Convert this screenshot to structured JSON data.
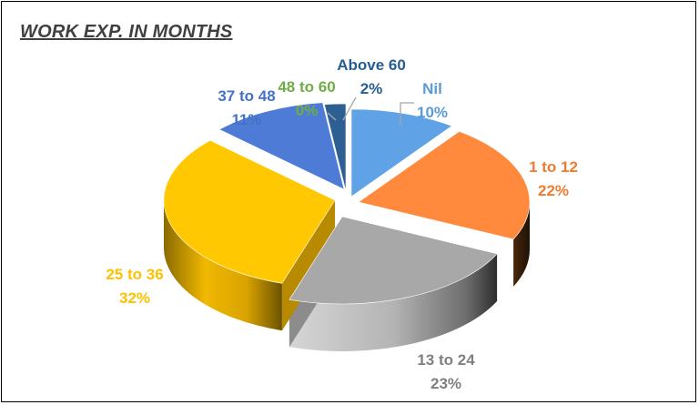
{
  "chart_data": {
    "type": "pie",
    "title": "WORK EXP. IN MONTHS",
    "slices": [
      {
        "name": "Nil",
        "value": 10,
        "label": "10%",
        "color": "#5FA2E6"
      },
      {
        "name": "1 to 12",
        "value": 22,
        "label": "22%",
        "color": "#FF8A3D"
      },
      {
        "name": "13 to 24",
        "value": 23,
        "label": "23%",
        "color": "#A8A8A8"
      },
      {
        "name": "25 to 36",
        "value": 32,
        "label": "32%",
        "color": "#FFC800"
      },
      {
        "name": "37 to 48",
        "value": 11,
        "label": "11%",
        "color": "#4D7BD6"
      },
      {
        "name": "48 to 60",
        "value": 0,
        "label": "0%",
        "color": "#6FAE3A"
      },
      {
        "name": "Above 60",
        "value": 2,
        "label": "2%",
        "color": "#2E5F93"
      }
    ],
    "label_colors": {
      "Nil": "#5B9BD5",
      "1 to 12": "#ED7D31",
      "13 to 24": "#7F7F7F",
      "25 to 36": "#FFC000",
      "37 to 48": "#4472C4",
      "48 to 60": "#70AD47",
      "Above 60": "#255E91"
    },
    "legend": "none",
    "style": "3d-exploded-pie"
  }
}
